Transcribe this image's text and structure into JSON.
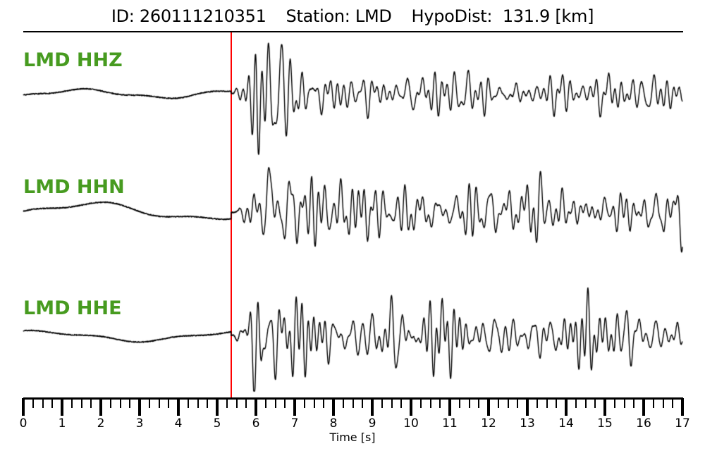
{
  "header": {
    "segments": [
      "ID: 260111210351",
      "Station: LMD",
      "HypoDist:  131.9 [km]"
    ]
  },
  "chart_data": {
    "type": "line",
    "kind": "three-component-seismogram",
    "event_id": "260111210351",
    "station": "LMD",
    "hypodist_km": 131.9,
    "xlabel": "Time [s]",
    "xlim": [
      0,
      17
    ],
    "x_major_tick_labels": [
      "0",
      "1",
      "2",
      "3",
      "4",
      "5",
      "6",
      "7",
      "8",
      "9",
      "10",
      "11",
      "12",
      "13",
      "14",
      "15",
      "16",
      "17"
    ],
    "x_minor_tick_step": 0.25,
    "pick_time_s": 5.36,
    "pick_color": "#ff0000",
    "trace_color": "#000000",
    "label_color": "#479B20",
    "grid": false,
    "series": [
      {
        "label": "LMD HHZ",
        "seed": 7,
        "pre_drift": {
          "amp": 5.5,
          "period": 4.2,
          "phase": -0.67
        },
        "envelope": {
          "peak": 58,
          "rise_s": 0.65,
          "sustained": 21,
          "decay_s": 1.4
        },
        "spike": {
          "t": 6.05,
          "amp": -55,
          "width": 0.05
        },
        "clip": 86
      },
      {
        "label": "LMD HHN",
        "seed": 13,
        "pre_drift": {
          "amp": 11,
          "period": 5.8,
          "phase": -0.27
        },
        "envelope": {
          "peak": 56,
          "rise_s": 0.9,
          "sustained": 27,
          "decay_s": 2.0
        },
        "spike": {
          "t": 6.32,
          "amp": 55,
          "width": 0.05
        },
        "clip": 80
      },
      {
        "label": "LMD HHE",
        "seed": 21,
        "pre_drift": {
          "amp": 6.5,
          "period": 5.2,
          "phase": 1.08
        },
        "envelope": {
          "peak": 60,
          "rise_s": 0.75,
          "sustained": 30,
          "decay_s": 1.7
        },
        "spike": {
          "t": 6.12,
          "amp": -50,
          "width": 0.06
        },
        "clip": 78
      }
    ]
  }
}
